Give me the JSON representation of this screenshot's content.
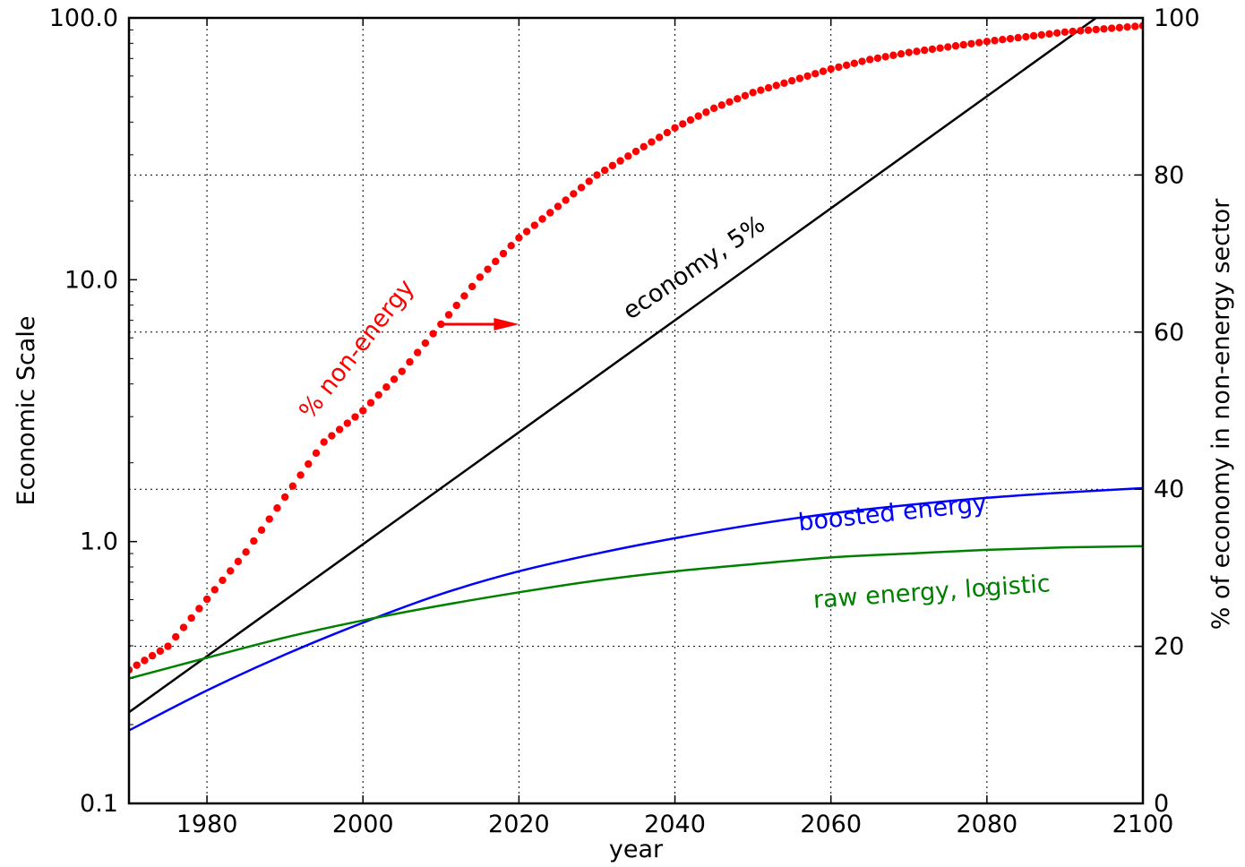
{
  "chart_data": {
    "type": "line",
    "title": "",
    "xlabel": "year",
    "ylabel": "Economic Scale",
    "y2label": "% of economy in non-energy sector",
    "xlim": [
      1970,
      2100
    ],
    "ylim": [
      0.1,
      100
    ],
    "yscale": "log",
    "y2lim": [
      0,
      100
    ],
    "grid": true,
    "x_ticks": [
      1980,
      2000,
      2020,
      2040,
      2060,
      2080,
      2100
    ],
    "x_tick_labels": [
      "1980",
      "2000",
      "2020",
      "2040",
      "2060",
      "2080",
      "2100"
    ],
    "y_ticks": [
      0.1,
      1,
      10,
      100
    ],
    "y_tick_labels": [
      "0.1",
      "1.0",
      "10.0",
      "100.0"
    ],
    "y2_ticks": [
      0,
      20,
      40,
      60,
      80,
      100
    ],
    "y2_tick_labels": [
      "0",
      "20",
      "40",
      "60",
      "80",
      "100"
    ],
    "series": [
      {
        "name": "economy, 5%",
        "color": "#000000",
        "axis": "left",
        "style": "line",
        "x": [
          1970,
          2094
        ],
        "y": [
          0.223,
          100
        ]
      },
      {
        "name": "boosted energy",
        "color": "#0000ff",
        "axis": "left",
        "style": "line",
        "x": [
          1970,
          1980,
          1990,
          2000,
          2010,
          2020,
          2030,
          2040,
          2050,
          2060,
          2070,
          2080,
          2090,
          2100
        ],
        "y": [
          0.19,
          0.27,
          0.37,
          0.49,
          0.63,
          0.77,
          0.9,
          1.03,
          1.16,
          1.28,
          1.38,
          1.47,
          1.54,
          1.6
        ]
      },
      {
        "name": "raw energy, logistic",
        "color": "#008000",
        "axis": "left",
        "style": "line",
        "x": [
          1970,
          1980,
          1990,
          2000,
          2010,
          2020,
          2030,
          2040,
          2050,
          2060,
          2070,
          2080,
          2090,
          2100
        ],
        "y": [
          0.3,
          0.36,
          0.43,
          0.5,
          0.57,
          0.64,
          0.71,
          0.77,
          0.82,
          0.87,
          0.9,
          0.93,
          0.95,
          0.96
        ]
      },
      {
        "name": "% non-energy",
        "color": "#ff0000",
        "axis": "right",
        "style": "dots",
        "x": [
          1970,
          1975,
          1980,
          1985,
          1990,
          1995,
          2000,
          2005,
          2010,
          2015,
          2020,
          2025,
          2030,
          2035,
          2040,
          2045,
          2050,
          2055,
          2060,
          2065,
          2070,
          2075,
          2080,
          2085,
          2090,
          2095,
          2100
        ],
        "y": [
          17,
          20,
          26,
          32,
          39,
          46,
          50,
          55,
          61,
          67,
          72,
          76,
          80,
          83,
          86,
          88.5,
          90.5,
          92,
          93.5,
          94.7,
          95.6,
          96.3,
          97,
          97.6,
          98.2,
          98.6,
          99
        ]
      }
    ],
    "annotations": [
      {
        "text": "economy, 5%",
        "color": "#000000",
        "x": 2043,
        "y": 10.5,
        "rotate": -34
      },
      {
        "text": "boosted energy",
        "color": "#0000ff",
        "x": 2068,
        "y": 1.2,
        "rotate": -6
      },
      {
        "text": "raw energy, logistic",
        "color": "#008000",
        "x": 2073,
        "y": 0.6,
        "rotate": -4
      },
      {
        "text": "% non-energy",
        "color": "#ff0000",
        "x": 2000,
        "y": 5.2,
        "rotate": -52
      }
    ],
    "arrow": {
      "color": "#ff0000",
      "axis": "right",
      "y": 61,
      "x_from": 2010,
      "x_to": 2020
    }
  }
}
